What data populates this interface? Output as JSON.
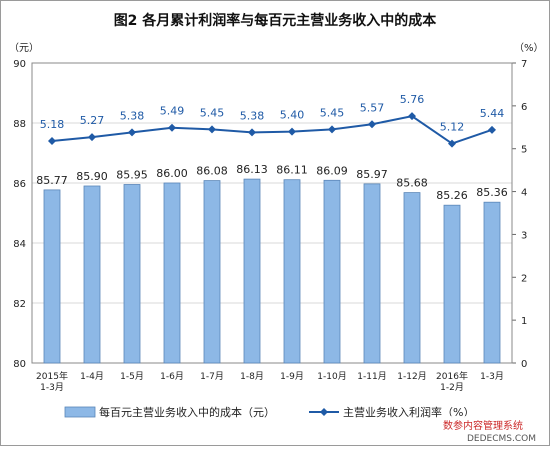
{
  "chart_data": {
    "type": "bar",
    "title": "图2  各月累计利润率与每百元主营业务收入中的成本",
    "categories": [
      [
        "2015年",
        "1-3月"
      ],
      [
        "1-4月"
      ],
      [
        "1-5月"
      ],
      [
        "1-6月"
      ],
      [
        "1-7月"
      ],
      [
        "1-8月"
      ],
      [
        "1-9月"
      ],
      [
        "1-10月"
      ],
      [
        "1-11月"
      ],
      [
        "1-12月"
      ],
      [
        "2016年",
        "1-2月"
      ],
      [
        "1-3月"
      ]
    ],
    "series": [
      {
        "name": "每百元主营业务收入中的成本（元）",
        "type": "bar",
        "axis": "left",
        "color": "#8db8e6",
        "values": [
          85.77,
          85.9,
          85.95,
          86.0,
          86.08,
          86.13,
          86.11,
          86.09,
          85.97,
          85.68,
          85.26,
          85.36
        ]
      },
      {
        "name": "主营业务收入利润率（%）",
        "type": "line",
        "axis": "right",
        "color": "#1f5aa6",
        "values": [
          5.18,
          5.27,
          5.38,
          5.49,
          5.45,
          5.38,
          5.4,
          5.45,
          5.57,
          5.76,
          5.12,
          5.44
        ]
      }
    ],
    "y_left": {
      "unit": "（元）",
      "lim": [
        80,
        90
      ],
      "ticks": [
        80,
        82,
        84,
        86,
        88,
        90
      ]
    },
    "y_right": {
      "unit": "（%）",
      "lim": [
        0,
        7
      ],
      "ticks": [
        0,
        1,
        2,
        3,
        4,
        5,
        6,
        7
      ]
    },
    "grid": true,
    "legend": "bottom"
  },
  "watermark": {
    "line1": "数参内容管理系统",
    "line2": "DEDECMS.COM"
  }
}
